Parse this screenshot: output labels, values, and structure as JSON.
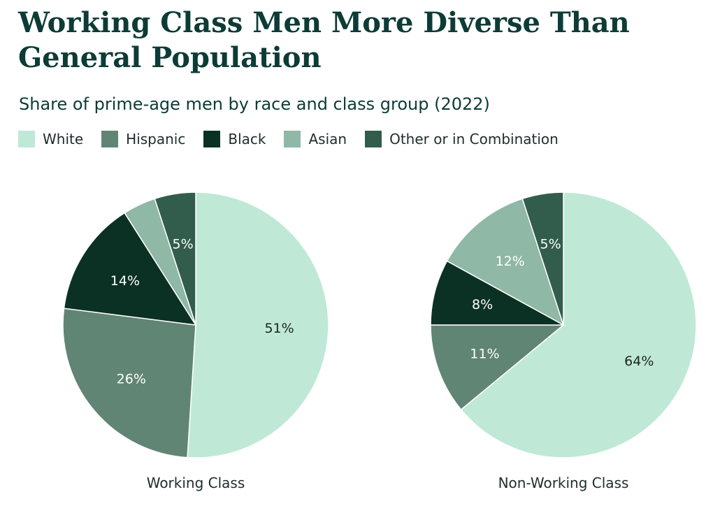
{
  "title": "Working Class Men More Diverse Than General Population",
  "subtitle": "Share of prime-age men by race and class group (2022)",
  "legend": [
    {
      "label": "White",
      "color": "#bfe9d6"
    },
    {
      "label": "Hispanic",
      "color": "#618575"
    },
    {
      "label": "Black",
      "color": "#0b3124"
    },
    {
      "label": "Asian",
      "color": "#8fb8a6"
    },
    {
      "label": "Other or in Combination",
      "color": "#325d4c"
    }
  ],
  "chart_data": [
    {
      "type": "pie",
      "title": "Working Class",
      "slices": [
        {
          "name": "White",
          "value": 51,
          "label": "51%"
        },
        {
          "name": "Hispanic",
          "value": 26,
          "label": "26%"
        },
        {
          "name": "Black",
          "value": 14,
          "label": "14%"
        },
        {
          "name": "Asian",
          "value": 4,
          "label": ""
        },
        {
          "name": "Other or in Combination",
          "value": 5,
          "label": "5%"
        }
      ]
    },
    {
      "type": "pie",
      "title": "Non-Working Class",
      "slices": [
        {
          "name": "White",
          "value": 64,
          "label": "64%"
        },
        {
          "name": "Hispanic",
          "value": 11,
          "label": "11%"
        },
        {
          "name": "Black",
          "value": 8,
          "label": "8%"
        },
        {
          "name": "Asian",
          "value": 12,
          "label": "12%"
        },
        {
          "name": "Other or in Combination",
          "value": 5,
          "label": "5%"
        }
      ]
    }
  ]
}
